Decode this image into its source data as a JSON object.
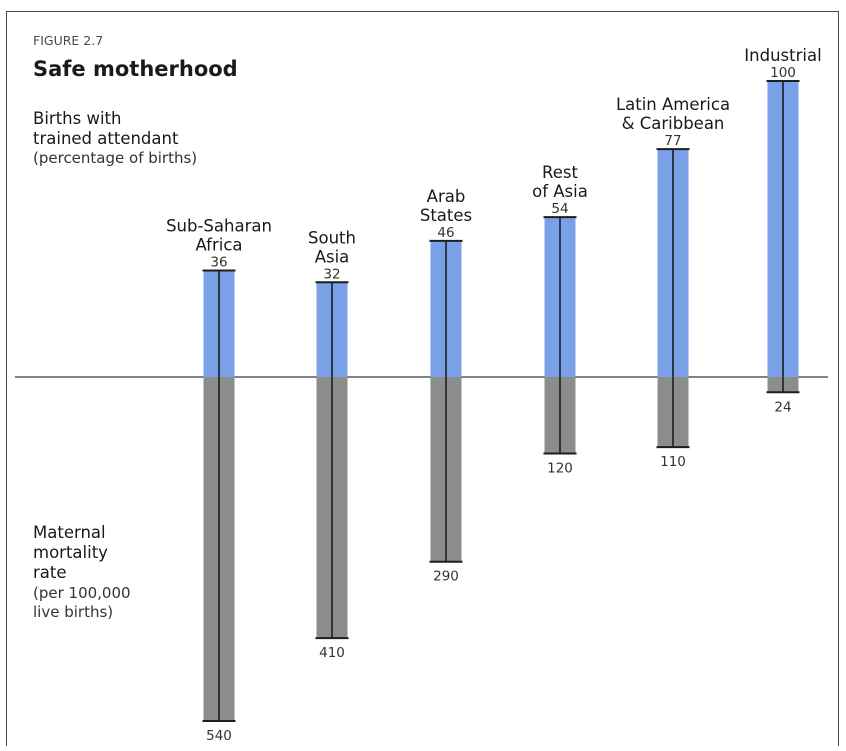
{
  "figure": {
    "label": "FIGURE 2.7",
    "title": "Safe motherhood"
  },
  "top_axis_label": {
    "lines": [
      "Births with",
      "trained attendant"
    ],
    "unit": "(percentage of births)"
  },
  "bottom_axis_label": {
    "lines": [
      "Maternal",
      "mortality",
      "rate"
    ],
    "unit_lines": [
      "(per 100,000",
      "live births)"
    ]
  },
  "chart_data": {
    "type": "bar",
    "categories": [
      [
        "Sub-Saharan",
        "Africa"
      ],
      [
        "South",
        "Asia"
      ],
      [
        "Arab",
        "States"
      ],
      [
        "Rest",
        "of Asia"
      ],
      [
        "Latin America",
        "& Caribbean"
      ],
      [
        "Industrial"
      ]
    ],
    "series": [
      {
        "values": [
          36,
          32,
          46,
          54,
          77,
          100
        ],
        "color": "#7aa0e8",
        "direction": "up"
      },
      {
        "values": [
          540,
          410,
          290,
          120,
          110,
          24
        ],
        "color": "#8c8c8c",
        "direction": "down"
      }
    ],
    "grid": false,
    "legend": "none"
  }
}
